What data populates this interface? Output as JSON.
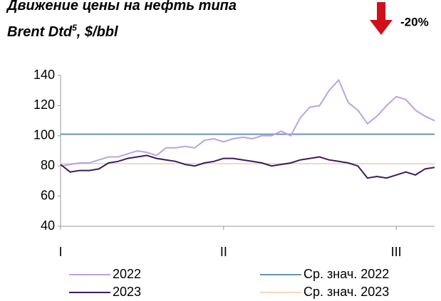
{
  "chart_data": {
    "type": "line",
    "title": {
      "line1": "Движение цены на нефть типа",
      "line2": "Brent Dtd",
      "footnote": "5",
      "line2_end": ", $/bbl"
    },
    "annotation": "-20%",
    "categories": [
      "I",
      null,
      null,
      null,
      null,
      null,
      null,
      null,
      null,
      null,
      null,
      null,
      null,
      null,
      null,
      null,
      null,
      "II",
      null,
      null,
      null,
      null,
      null,
      null,
      null,
      null,
      null,
      null,
      null,
      null,
      null,
      null,
      null,
      null,
      null,
      "III",
      null,
      null,
      null,
      null
    ],
    "series": [
      {
        "name": "2022",
        "color": "#b9a3e3",
        "values": [
          80,
          81,
          82,
          82,
          84,
          86,
          86,
          88,
          90,
          89,
          87,
          92,
          92,
          93,
          92,
          97,
          98,
          96,
          98,
          99,
          98,
          100,
          100,
          103,
          100,
          112,
          119,
          120,
          130,
          137,
          122,
          117,
          108,
          113,
          120,
          126,
          124,
          117,
          113,
          110
        ]
      },
      {
        "name": "2023",
        "color": "#3d1a5e",
        "values": [
          81,
          76,
          77,
          77,
          78,
          82,
          83,
          85,
          86,
          87,
          85,
          84,
          83,
          81,
          80,
          82,
          83,
          85,
          85,
          84,
          83,
          82,
          80,
          81,
          82,
          84,
          85,
          86,
          84,
          83,
          82,
          80,
          72,
          73,
          72,
          74,
          76,
          74,
          78,
          79
        ]
      }
    ],
    "reference_lines": [
      {
        "name": "Ср. знач. 2022",
        "color": "#6a93b8",
        "value": 101
      },
      {
        "name": "Ср. знач. 2023",
        "color": "#f6d8bd",
        "value": 81.5
      }
    ],
    "ylim": [
      40,
      140
    ],
    "yticks": [
      40,
      60,
      80,
      100,
      120,
      140
    ]
  }
}
